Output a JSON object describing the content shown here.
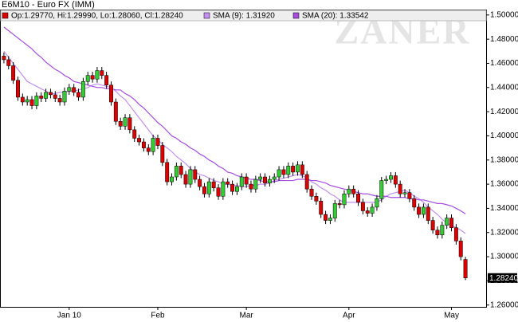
{
  "chart_data": {
    "type": "candlestick",
    "title": "E6M10 - Euro FX (IMM)",
    "ohlc_label": "Op:1.29770, Hi:1.29990, Lo:1.28060, Cl:1.28240",
    "watermark": "ZANER",
    "last_label": "1.28240",
    "categories": [
      null,
      null,
      null,
      null,
      null,
      null,
      null,
      null,
      null,
      null,
      null,
      null,
      null,
      null,
      "Jan 10",
      null,
      null,
      null,
      null,
      null,
      null,
      null,
      null,
      null,
      null,
      null,
      null,
      null,
      null,
      null,
      null,
      null,
      null,
      "Feb",
      null,
      null,
      null,
      null,
      null,
      null,
      null,
      null,
      null,
      null,
      null,
      null,
      null,
      null,
      null,
      null,
      null,
      null,
      "Mar",
      null,
      null,
      null,
      null,
      null,
      null,
      null,
      null,
      null,
      null,
      null,
      null,
      null,
      null,
      null,
      null,
      null,
      null,
      null,
      null,
      null,
      "Apr",
      null,
      null,
      null,
      null,
      null,
      null,
      null,
      null,
      null,
      null,
      null,
      null,
      null,
      null,
      null,
      null,
      null,
      null,
      null,
      null,
      null,
      "May",
      null,
      null,
      null
    ],
    "open": [
      1.466,
      1.463,
      1.458,
      1.446,
      1.432,
      1.428,
      1.43,
      1.425,
      1.433,
      1.431,
      1.436,
      1.434,
      1.431,
      1.428,
      1.437,
      1.44,
      1.436,
      1.432,
      1.445,
      1.45,
      1.447,
      1.454,
      1.45,
      1.442,
      1.428,
      1.412,
      1.408,
      1.415,
      1.405,
      1.398,
      1.395,
      1.39,
      1.387,
      1.398,
      1.392,
      1.378,
      1.362,
      1.366,
      1.375,
      1.368,
      1.36,
      1.372,
      1.364,
      1.358,
      1.352,
      1.362,
      1.357,
      1.35,
      1.362,
      1.36,
      1.354,
      1.358,
      1.366,
      1.36,
      1.356,
      1.364,
      1.366,
      1.361,
      1.364,
      1.366,
      1.372,
      1.368,
      1.375,
      1.37,
      1.376,
      1.368,
      1.356,
      1.35,
      1.346,
      1.335,
      1.33,
      1.332,
      1.344,
      1.343,
      1.352,
      1.356,
      1.352,
      1.345,
      1.338,
      1.336,
      1.341,
      1.348,
      1.363,
      1.364,
      1.367,
      1.36,
      1.352,
      1.353,
      1.348,
      1.341,
      1.335,
      1.341,
      1.33,
      1.322,
      1.318,
      1.326,
      1.332,
      1.324,
      1.313,
      1.2977
    ],
    "high": [
      1.469,
      1.466,
      1.461,
      1.449,
      1.435,
      1.433,
      1.433,
      1.436,
      1.436,
      1.439,
      1.439,
      1.437,
      1.434,
      1.44,
      1.443,
      1.443,
      1.439,
      1.448,
      1.453,
      1.453,
      1.457,
      1.457,
      1.453,
      1.445,
      1.431,
      1.415,
      1.418,
      1.418,
      1.408,
      1.401,
      1.398,
      1.393,
      1.401,
      1.401,
      1.395,
      1.381,
      1.369,
      1.378,
      1.378,
      1.371,
      1.375,
      1.375,
      1.367,
      1.361,
      1.365,
      1.365,
      1.36,
      1.365,
      1.365,
      1.363,
      1.361,
      1.369,
      1.369,
      1.363,
      1.367,
      1.369,
      1.369,
      1.367,
      1.369,
      1.375,
      1.375,
      1.378,
      1.378,
      1.379,
      1.379,
      1.371,
      1.359,
      1.353,
      1.349,
      1.338,
      1.335,
      1.347,
      1.347,
      1.355,
      1.359,
      1.359,
      1.355,
      1.348,
      1.341,
      1.344,
      1.351,
      1.366,
      1.367,
      1.37,
      1.37,
      1.363,
      1.356,
      1.356,
      1.351,
      1.344,
      1.344,
      1.344,
      1.333,
      1.325,
      1.329,
      1.335,
      1.335,
      1.327,
      1.316,
      1.2999
    ],
    "low": [
      1.46,
      1.455,
      1.443,
      1.429,
      1.425,
      1.425,
      1.422,
      1.422,
      1.428,
      1.428,
      1.431,
      1.428,
      1.425,
      1.425,
      1.434,
      1.433,
      1.429,
      1.429,
      1.442,
      1.444,
      1.444,
      1.447,
      1.439,
      1.425,
      1.409,
      1.405,
      1.405,
      1.402,
      1.395,
      1.392,
      1.387,
      1.384,
      1.384,
      1.389,
      1.375,
      1.359,
      1.359,
      1.363,
      1.365,
      1.357,
      1.357,
      1.361,
      1.355,
      1.349,
      1.349,
      1.354,
      1.347,
      1.347,
      1.357,
      1.351,
      1.351,
      1.355,
      1.357,
      1.353,
      1.353,
      1.361,
      1.358,
      1.358,
      1.361,
      1.363,
      1.365,
      1.365,
      1.367,
      1.367,
      1.365,
      1.353,
      1.347,
      1.343,
      1.332,
      1.327,
      1.327,
      1.329,
      1.34,
      1.34,
      1.349,
      1.349,
      1.342,
      1.335,
      1.333,
      1.333,
      1.338,
      1.345,
      1.36,
      1.361,
      1.357,
      1.349,
      1.349,
      1.345,
      1.338,
      1.332,
      1.332,
      1.327,
      1.319,
      1.315,
      1.315,
      1.323,
      1.321,
      1.31,
      1.297,
      1.2806
    ],
    "close": [
      1.463,
      1.458,
      1.446,
      1.432,
      1.428,
      1.43,
      1.425,
      1.433,
      1.431,
      1.436,
      1.434,
      1.431,
      1.428,
      1.437,
      1.44,
      1.436,
      1.432,
      1.445,
      1.45,
      1.447,
      1.454,
      1.45,
      1.442,
      1.428,
      1.412,
      1.408,
      1.415,
      1.405,
      1.398,
      1.395,
      1.39,
      1.387,
      1.398,
      1.392,
      1.378,
      1.362,
      1.366,
      1.375,
      1.368,
      1.36,
      1.372,
      1.364,
      1.358,
      1.352,
      1.362,
      1.357,
      1.35,
      1.362,
      1.36,
      1.354,
      1.358,
      1.366,
      1.36,
      1.356,
      1.364,
      1.366,
      1.361,
      1.364,
      1.366,
      1.372,
      1.368,
      1.375,
      1.37,
      1.376,
      1.368,
      1.356,
      1.35,
      1.346,
      1.335,
      1.33,
      1.332,
      1.344,
      1.343,
      1.352,
      1.356,
      1.352,
      1.345,
      1.338,
      1.336,
      1.341,
      1.348,
      1.363,
      1.364,
      1.367,
      1.36,
      1.352,
      1.353,
      1.348,
      1.341,
      1.335,
      1.341,
      1.33,
      1.322,
      1.318,
      1.326,
      1.332,
      1.324,
      1.313,
      1.3,
      1.2824
    ],
    "up_color": "#33cc33",
    "down_color": "#dd0000",
    "series": [
      {
        "name": "SMA (9): 1.31920",
        "color": "#c48ff0",
        "values": [
          1.47,
          1.465,
          1.46,
          1.455,
          1.45,
          1.445,
          1.443,
          1.441,
          1.439,
          1.437,
          1.435,
          1.435,
          1.436,
          1.436,
          1.437,
          1.437,
          1.438,
          1.439,
          1.44,
          1.442,
          1.443,
          1.442,
          1.441,
          1.44,
          1.437,
          1.433,
          1.43,
          1.425,
          1.42,
          1.415,
          1.41,
          1.405,
          1.4,
          1.397,
          1.393,
          1.39,
          1.387,
          1.383,
          1.38,
          1.377,
          1.373,
          1.37,
          1.368,
          1.367,
          1.365,
          1.363,
          1.362,
          1.36,
          1.36,
          1.359,
          1.359,
          1.358,
          1.358,
          1.359,
          1.359,
          1.36,
          1.36,
          1.361,
          1.363,
          1.364,
          1.365,
          1.366,
          1.367,
          1.368,
          1.367,
          1.365,
          1.362,
          1.36,
          1.357,
          1.355,
          1.352,
          1.35,
          1.347,
          1.345,
          1.345,
          1.345,
          1.345,
          1.345,
          1.345,
          1.345,
          1.345,
          1.347,
          1.35,
          1.352,
          1.353,
          1.354,
          1.355,
          1.353,
          1.35,
          1.348,
          1.345,
          1.341,
          1.338,
          1.335,
          1.331,
          1.328,
          1.326,
          1.324,
          1.322,
          1.3192
        ]
      },
      {
        "name": "SMA (20): 1.33542",
        "color": "#a64de0",
        "values": [
          1.49,
          1.487,
          1.484,
          1.481,
          1.478,
          1.475,
          1.472,
          1.468,
          1.465,
          1.461,
          1.458,
          1.455,
          1.453,
          1.45,
          1.448,
          1.445,
          1.444,
          1.443,
          1.442,
          1.441,
          1.44,
          1.44,
          1.439,
          1.439,
          1.438,
          1.438,
          1.435,
          1.433,
          1.43,
          1.426,
          1.423,
          1.419,
          1.415,
          1.411,
          1.408,
          1.404,
          1.4,
          1.398,
          1.395,
          1.393,
          1.39,
          1.388,
          1.385,
          1.383,
          1.38,
          1.378,
          1.375,
          1.373,
          1.37,
          1.369,
          1.367,
          1.366,
          1.365,
          1.364,
          1.364,
          1.363,
          1.362,
          1.362,
          1.362,
          1.363,
          1.363,
          1.363,
          1.363,
          1.364,
          1.364,
          1.364,
          1.363,
          1.363,
          1.362,
          1.361,
          1.359,
          1.358,
          1.357,
          1.356,
          1.355,
          1.354,
          1.353,
          1.352,
          1.352,
          1.351,
          1.35,
          1.35,
          1.35,
          1.349,
          1.349,
          1.349,
          1.349,
          1.348,
          1.348,
          1.347,
          1.347,
          1.346,
          1.345,
          1.344,
          1.344,
          1.343,
          1.342,
          1.34,
          1.338,
          1.33542
        ]
      }
    ],
    "ylim": [
      1.2585,
      1.5045
    ],
    "yticks": [
      {
        "value": 1.26,
        "label": "1.26000"
      },
      {
        "value": 1.28,
        "label": "1.28000"
      },
      {
        "value": 1.3,
        "label": "1.30000"
      },
      {
        "value": 1.32,
        "label": "1.32000"
      },
      {
        "value": 1.34,
        "label": "1.34000"
      },
      {
        "value": 1.36,
        "label": "1.36000"
      },
      {
        "value": 1.38,
        "label": "1.38000"
      },
      {
        "value": 1.4,
        "label": "1.40000"
      },
      {
        "value": 1.42,
        "label": "1.42000"
      },
      {
        "value": 1.44,
        "label": "1.44000"
      },
      {
        "value": 1.46,
        "label": "1.46000"
      },
      {
        "value": 1.48,
        "label": "1.48000"
      },
      {
        "value": 1.5,
        "label": "1.50000"
      }
    ],
    "grid": false
  }
}
